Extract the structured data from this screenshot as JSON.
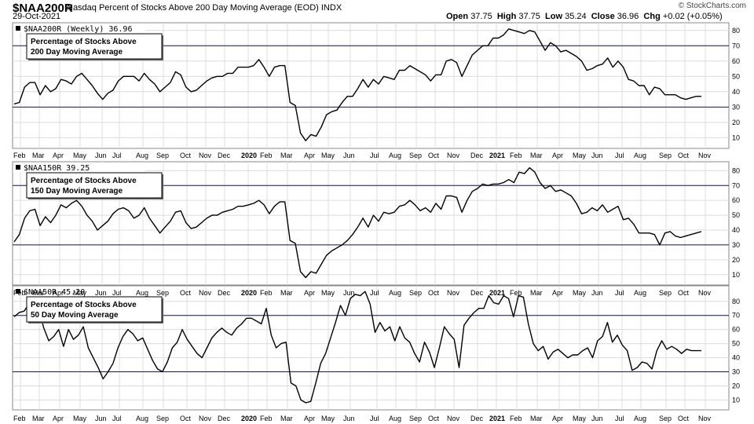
{
  "header": {
    "symbol": "$NAA200R",
    "description": "Nasdaq Percent of Stocks Above 200 Day Moving Average (EOD)",
    "exchange": "INDX",
    "date": "29-Oct-2021",
    "open_label": "Open",
    "open": "37.75",
    "high_label": "High",
    "high": "37.75",
    "low_label": "Low",
    "low": "35.24",
    "close_label": "Close",
    "close": "36.96",
    "chg_label": "Chg",
    "chg": "+0.02 (+0.05%)",
    "brand": "© StockCharts.com"
  },
  "chart_data": {
    "type": "line",
    "x_labels": [
      "Feb",
      "Mar",
      "Apr",
      "May",
      "Jun",
      "Jul",
      "Aug",
      "Sep",
      "Oct",
      "Nov",
      "Dec",
      "2020",
      "Feb",
      "Mar",
      "Apr",
      "May",
      "Jun",
      "Jul",
      "Aug",
      "Sep",
      "Oct",
      "Nov",
      "Dec",
      "2021",
      "Feb",
      "Mar",
      "Apr",
      "May",
      "Jun",
      "Jul",
      "Aug",
      "Sep",
      "Oct",
      "Nov"
    ],
    "y_ticks": [
      10,
      20,
      30,
      40,
      50,
      60,
      70,
      80
    ],
    "reference_lines": [
      30,
      70
    ],
    "panels": [
      {
        "ticker_label": "$NAA200R (Weekly) 36.96",
        "legend": [
          "Percentage of Stocks Above",
          "200 Day Moving Average"
        ],
        "ylim": [
          3,
          85
        ],
        "values": [
          32,
          33,
          43,
          46,
          46,
          38,
          44,
          40,
          42,
          48,
          47,
          45,
          50,
          52,
          48,
          44,
          39,
          35,
          39,
          41,
          47,
          50,
          50,
          50,
          47,
          52,
          48,
          45,
          40,
          43,
          46,
          53,
          51,
          43,
          40,
          41,
          44,
          47,
          49,
          50,
          50,
          52,
          52,
          56,
          56,
          56,
          57,
          61,
          56,
          50,
          56,
          57,
          57,
          33,
          31,
          13,
          8,
          12,
          11,
          17,
          25,
          27,
          28,
          33,
          37,
          37,
          42,
          48,
          43,
          48,
          45,
          50,
          49,
          48,
          54,
          54,
          57,
          55,
          53,
          51,
          47,
          51,
          51,
          60,
          61,
          59,
          50,
          57,
          64,
          67,
          70,
          70,
          75,
          75,
          77,
          81,
          80,
          79,
          78,
          80,
          79,
          73,
          67,
          72,
          70,
          66,
          67,
          65,
          63,
          60,
          54,
          55,
          57,
          58,
          62,
          56,
          60,
          56,
          48,
          47,
          44,
          44,
          38,
          43,
          42,
          38,
          38,
          38,
          36,
          35,
          36,
          37,
          37
        ]
      },
      {
        "ticker_label": "$NAA150R 39.25",
        "legend": [
          "Percentage of Stocks Above",
          "150 Day Moving Average"
        ],
        "ylim": [
          3,
          86
        ],
        "values": [
          32,
          37,
          48,
          53,
          54,
          43,
          49,
          45,
          50,
          57,
          55,
          58,
          60,
          56,
          50,
          46,
          40,
          43,
          46,
          51,
          54,
          55,
          53,
          48,
          50,
          55,
          48,
          43,
          38,
          42,
          46,
          52,
          53,
          45,
          41,
          42,
          45,
          48,
          50,
          50,
          52,
          53,
          54,
          56,
          56,
          57,
          58,
          60,
          57,
          51,
          56,
          59,
          59,
          33,
          31,
          12,
          8,
          12,
          11,
          17,
          23,
          26,
          28,
          30,
          33,
          37,
          42,
          48,
          42,
          50,
          46,
          52,
          51,
          52,
          56,
          57,
          60,
          57,
          53,
          55,
          52,
          58,
          54,
          63,
          63,
          62,
          52,
          60,
          66,
          68,
          71,
          70,
          71,
          71,
          72,
          74,
          72,
          79,
          78,
          82,
          79,
          72,
          68,
          70,
          66,
          67,
          65,
          63,
          58,
          51,
          52,
          55,
          53,
          57,
          52,
          54,
          56,
          47,
          48,
          44,
          38,
          38,
          38,
          37,
          30,
          38,
          39,
          36,
          35,
          36,
          37,
          38,
          39
        ]
      },
      {
        "ticker_label": "$NAA50R 45.20",
        "legend": [
          "Percentage of Stocks Above",
          "50 Day Moving Average"
        ],
        "ylim": [
          3,
          91
        ],
        "values": [
          69,
          72,
          73,
          78,
          80,
          74,
          61,
          52,
          55,
          60,
          48,
          60,
          53,
          56,
          62,
          47,
          40,
          33,
          25,
          30,
          36,
          47,
          55,
          60,
          57,
          52,
          54,
          46,
          38,
          32,
          30,
          37,
          47,
          51,
          60,
          53,
          48,
          43,
          40,
          47,
          54,
          58,
          61,
          58,
          56,
          61,
          64,
          68,
          68,
          66,
          64,
          75,
          56,
          47,
          50,
          51,
          22,
          20,
          10,
          8,
          9,
          22,
          36,
          43,
          54,
          65,
          77,
          70,
          82,
          85,
          84,
          87,
          78,
          58,
          65,
          59,
          62,
          52,
          62,
          54,
          51,
          43,
          37,
          51,
          44,
          33,
          47,
          62,
          57,
          53,
          33,
          63,
          68,
          72,
          75,
          75,
          84,
          79,
          78,
          84,
          82,
          69,
          84,
          83,
          64,
          50,
          45,
          48,
          39,
          44,
          46,
          43,
          40,
          42,
          42,
          45,
          47,
          40,
          52,
          55,
          65,
          51,
          56,
          49,
          45,
          31,
          33,
          37,
          36,
          32,
          45,
          52,
          46,
          48,
          46,
          43,
          46,
          45,
          45,
          45
        ]
      }
    ]
  }
}
